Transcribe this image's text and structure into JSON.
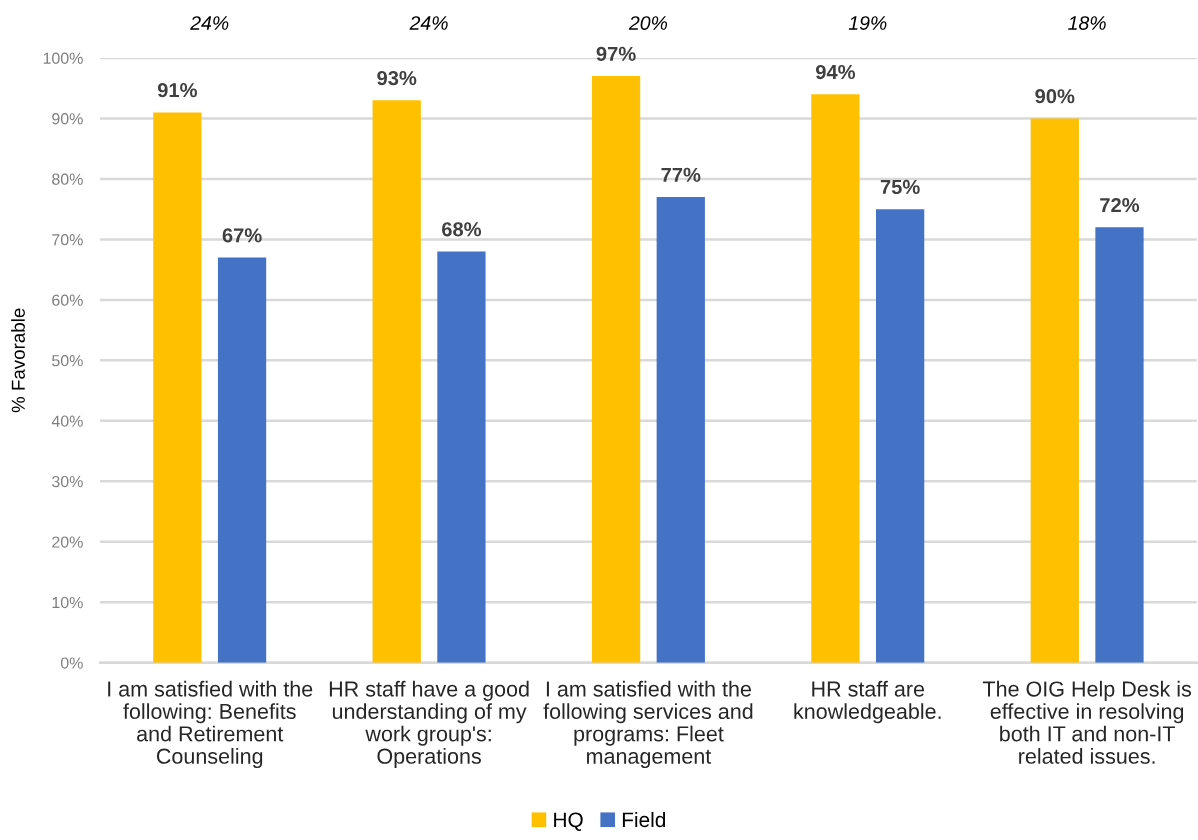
{
  "chart_data": {
    "type": "bar",
    "ylabel": "% Favorable",
    "categories": [
      "I am satisfied with the\nfollowing: Benefits\nand Retirement\nCounseling",
      "HR staff have a good\nunderstanding of my\nwork group's:\nOperations",
      "I am satisfied with the\nfollowing services and\nprograms: Fleet\nmanagement",
      "HR staff are\nknowledgeable.",
      "The OIG Help Desk is\neffective in resolving\nboth IT and non-IT\nrelated issues."
    ],
    "series": [
      {
        "name": "HQ",
        "color": "#ffc000",
        "values": [
          91,
          93,
          97,
          94,
          90
        ],
        "value_labels": [
          "91%",
          "93%",
          "97%",
          "94%",
          "90%"
        ]
      },
      {
        "name": "Field",
        "color": "#4472c4",
        "values": [
          67,
          68,
          77,
          75,
          72
        ],
        "value_labels": [
          "67%",
          "68%",
          "77%",
          "75%",
          "72%"
        ]
      }
    ],
    "ylim": [
      0,
      100
    ],
    "yticks": [
      {
        "value": 0,
        "label": "0%"
      },
      {
        "value": 10,
        "label": "10%"
      },
      {
        "value": 20,
        "label": "20%"
      },
      {
        "value": 30,
        "label": "30%"
      },
      {
        "value": 40,
        "label": "40%"
      },
      {
        "value": 50,
        "label": "50%"
      },
      {
        "value": 60,
        "label": "60%"
      },
      {
        "value": 70,
        "label": "70%"
      },
      {
        "value": 80,
        "label": "80%"
      },
      {
        "value": 90,
        "label": "90%"
      },
      {
        "value": 100,
        "label": "100%"
      }
    ],
    "grid": "y",
    "legend": "bottom",
    "annotations": [
      "24%",
      "24%",
      "20%",
      "19%",
      "18%"
    ]
  }
}
